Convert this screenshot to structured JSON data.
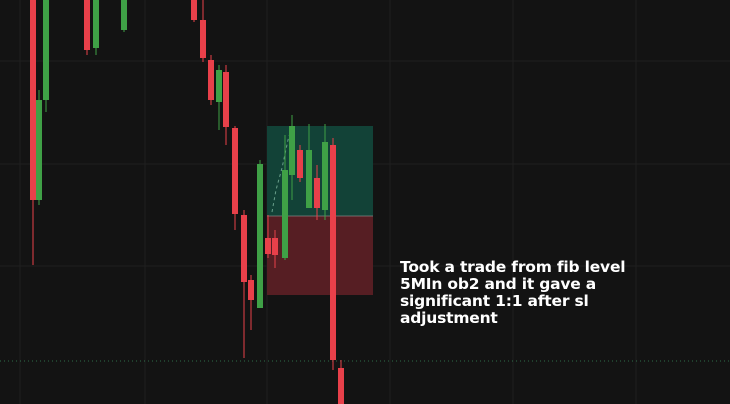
{
  "chart": {
    "type": "candlestick",
    "colors": {
      "background": "#131313",
      "grid": "#1f1f1f",
      "bull": "#3fa046",
      "bear": "#e8404a",
      "profit_zone": "#124439",
      "loss_zone": "#5a1f24",
      "price_line": "#2e6e4a"
    },
    "grid": true,
    "position_tool": {
      "side": "long",
      "target_ratio": "1:1"
    }
  },
  "annotation": {
    "lines": [
      "Took a trade from fib level",
      "5MIn ob2 and it gave a",
      "significant 1:1 after sl",
      "adjustment"
    ]
  }
}
